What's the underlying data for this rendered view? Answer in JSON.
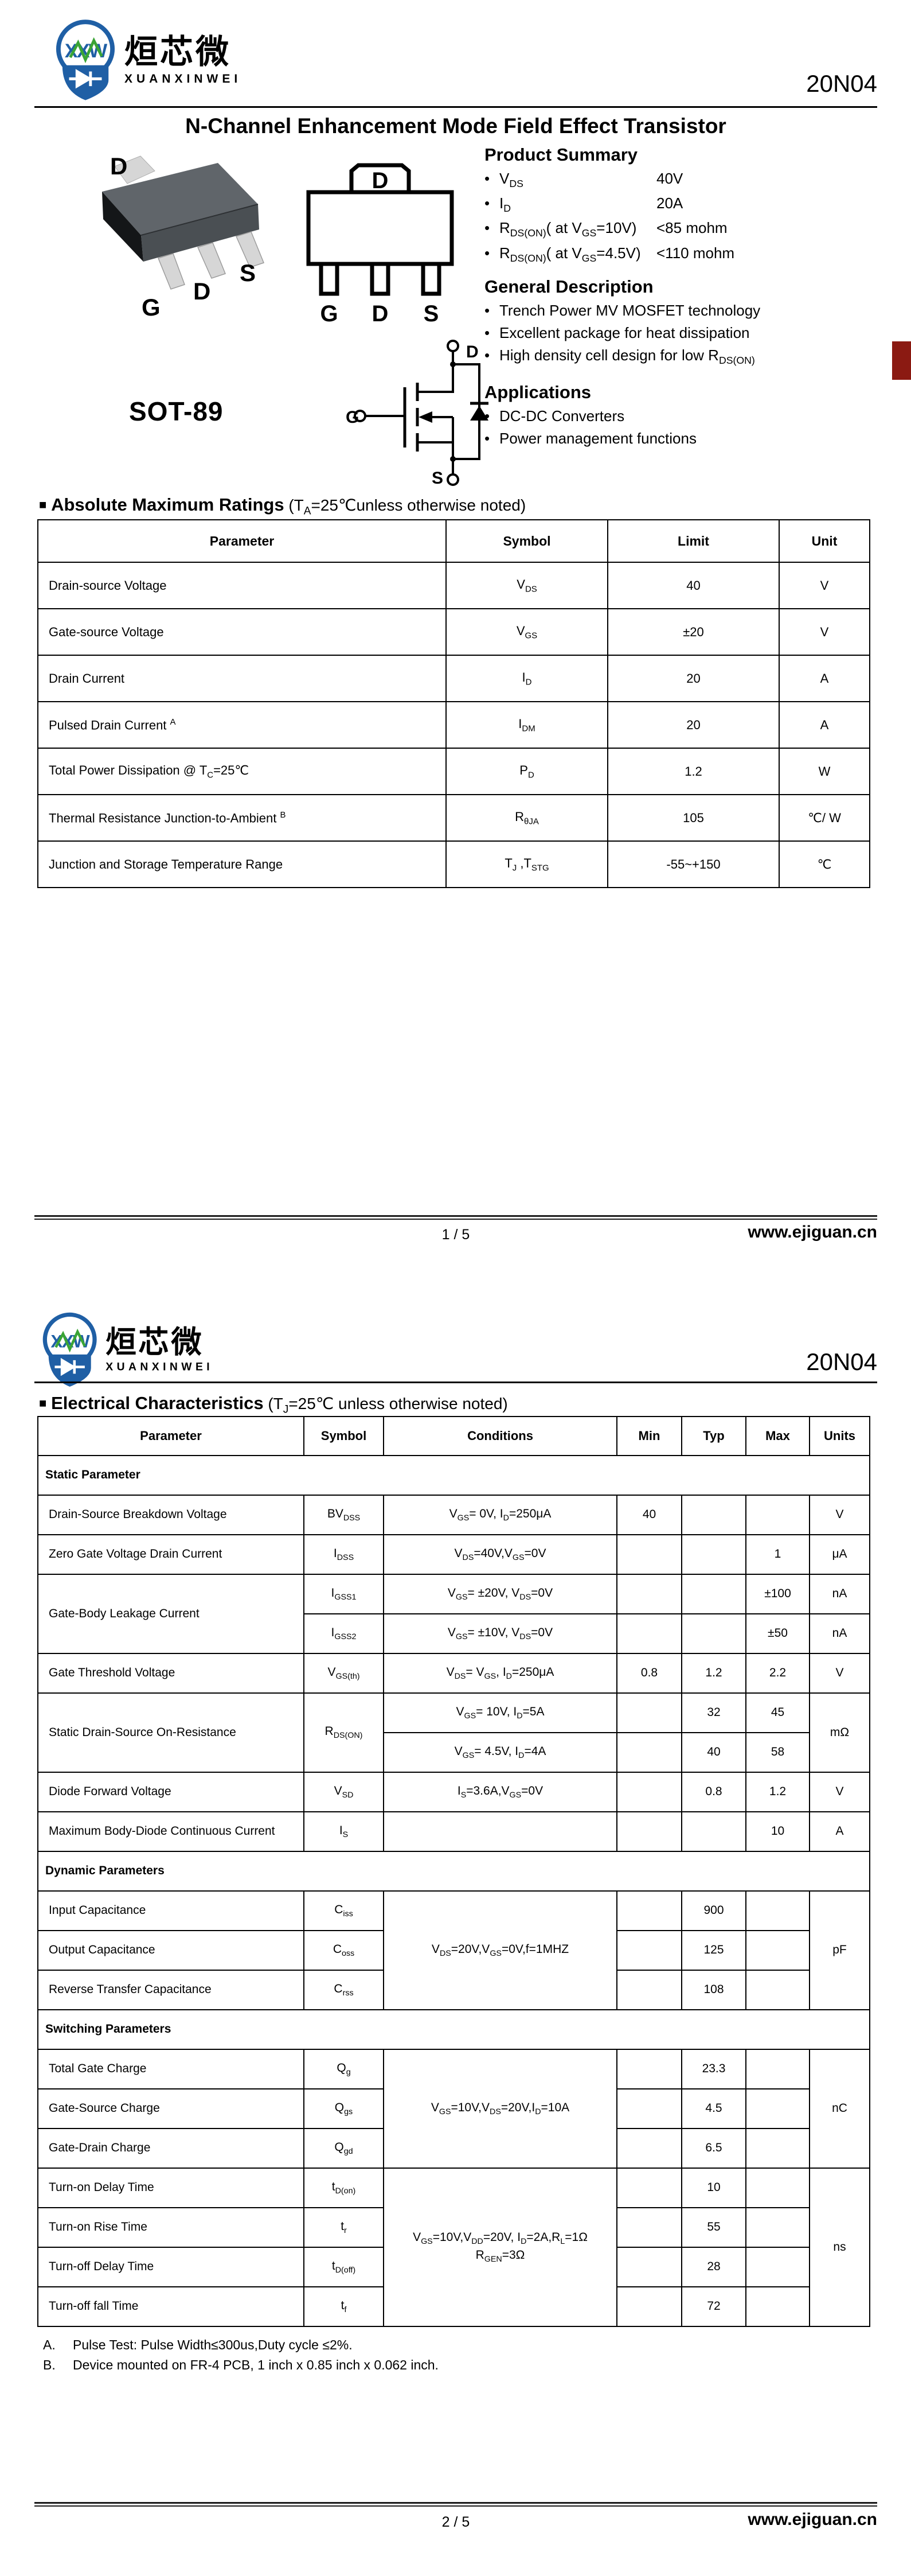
{
  "colors": {
    "logo_blue": "#1f5fa5",
    "logo_green": "#3aa435",
    "corner_tab_red": "#8b1a12"
  },
  "brand": {
    "name_cn": "烜芯微",
    "name_en": "XUANXINWEI",
    "logo_letters": "XXW",
    "part": "20N04"
  },
  "page1": {
    "title": "N-Channel Enhancement Mode Field Effect Transistor",
    "package_label": "SOT-89",
    "pins_3d": {
      "top": "D",
      "g": "G",
      "d": "D",
      "s": "S"
    },
    "pins_outline": {
      "tab": "D",
      "g": "G",
      "d": "D",
      "s": "S"
    },
    "schematic_pins": {
      "g": "G",
      "d": "D",
      "s": "S"
    },
    "product_summary": {
      "heading": "Product Summary",
      "items": [
        {
          "label": "V~DS~",
          "value": "40V"
        },
        {
          "label": "I~D~",
          "value": "20A"
        },
        {
          "label": "R~DS(ON)~( at V~GS~=10V)",
          "value": "<85 mohm"
        },
        {
          "label": "R~DS(ON)~( at V~GS~=4.5V)",
          "value": "<110 mohm"
        }
      ]
    },
    "general_description": {
      "heading": "General Description",
      "items": [
        "Trench Power MV MOSFET technology",
        "Excellent package for heat dissipation",
        "High density cell design for low R~DS(ON)~"
      ]
    },
    "applications": {
      "heading": "Applications",
      "items": [
        "DC-DC Converters",
        "Power management functions"
      ]
    },
    "abs_max": {
      "heading_bold": "Absolute Maximum Ratings",
      "heading_note": "(T~A~=25℃unless otherwise noted)",
      "columns": [
        "Parameter",
        "Symbol",
        "Limit",
        "Unit"
      ],
      "rows": [
        {
          "cells": [
            {
              "t": "Drain-source Voltage",
              "cls": "param"
            },
            "V~DS~",
            "40",
            "V"
          ]
        },
        {
          "cells": [
            {
              "t": "Gate-source Voltage",
              "cls": "param"
            },
            "V~GS~",
            "±20",
            "V"
          ]
        },
        {
          "cells": [
            {
              "t": "Drain Current",
              "cls": "param"
            },
            "I~D~",
            "20",
            "A"
          ]
        },
        {
          "cells": [
            {
              "t": "Pulsed Drain Current ^A^",
              "cls": "param"
            },
            "I~DM~",
            "20",
            "A"
          ]
        },
        {
          "cells": [
            {
              "t": "Total Power Dissipation @ T~C~=25℃",
              "cls": "param"
            },
            "P~D~",
            "1.2",
            "W"
          ]
        },
        {
          "cells": [
            {
              "t": "Thermal Resistance Junction-to-Ambient ^B^",
              "cls": "param"
            },
            "R~θJA~",
            "105",
            "℃/ W"
          ]
        },
        {
          "cells": [
            {
              "t": "Junction and Storage Temperature Range",
              "cls": "param"
            },
            "T~J~ ,T~STG~",
            "-55~+150",
            "℃"
          ]
        }
      ]
    },
    "footer": {
      "page": "1 / 5",
      "site": "www.ejiguan.cn"
    }
  },
  "page2": {
    "heading_bold": "Electrical Characteristics",
    "heading_note": "(T~J~=25℃ unless otherwise noted)",
    "table": {
      "columns": [
        "Parameter",
        "Symbol",
        "Conditions",
        "Min",
        "Typ",
        "Max",
        "Units"
      ],
      "rows": [
        {
          "cells": [
            {
              "t": "Static Parameter",
              "colspan": 7,
              "cls": "section"
            }
          ]
        },
        {
          "cells": [
            {
              "t": "Drain-Source Breakdown Voltage",
              "cls": "param"
            },
            "BV~DSS~",
            "V~GS~= 0V, I~D~=250μA",
            "40",
            "",
            "",
            "V"
          ]
        },
        {
          "cells": [
            {
              "t": "Zero Gate Voltage Drain Current",
              "cls": "param"
            },
            "I~DSS~",
            "V~DS~=40V,V~GS~=0V",
            "",
            "",
            "1",
            "μA"
          ]
        },
        {
          "cells": [
            {
              "t": "Gate-Body Leakage Current",
              "cls": "param",
              "rowspan": 2
            },
            "I~GSS1~",
            "V~GS~= ±20V, V~DS~=0V",
            "",
            "",
            "±100",
            "nA"
          ]
        },
        {
          "cells": [
            "I~GSS2~",
            "V~GS~= ±10V, V~DS~=0V",
            "",
            "",
            "±50",
            "nA"
          ]
        },
        {
          "cells": [
            {
              "t": "Gate Threshold Voltage",
              "cls": "param"
            },
            "V~GS(th)~",
            "V~DS~= V~GS~, I~D~=250μA",
            "0.8",
            "1.2",
            "2.2",
            "V"
          ]
        },
        {
          "cells": [
            {
              "t": "Static Drain-Source On-Resistance",
              "cls": "param",
              "rowspan": 2
            },
            {
              "t": "R~DS(ON)~",
              "rowspan": 2
            },
            "V~GS~= 10V, I~D~=5A",
            "",
            "32",
            "45",
            {
              "t": "mΩ",
              "rowspan": 2
            }
          ]
        },
        {
          "cells": [
            "V~GS~= 4.5V, I~D~=4A",
            "",
            "40",
            "58"
          ]
        },
        {
          "cells": [
            {
              "t": "Diode Forward Voltage",
              "cls": "param"
            },
            "V~SD~",
            "I~S~=3.6A,V~GS~=0V",
            "",
            "0.8",
            "1.2",
            "V"
          ]
        },
        {
          "cells": [
            {
              "t": "Maximum Body-Diode Continuous Current",
              "cls": "param"
            },
            "I~S~",
            "",
            "",
            "",
            "10",
            "A"
          ]
        },
        {
          "cells": [
            {
              "t": "Dynamic Parameters",
              "colspan": 7,
              "cls": "section"
            }
          ]
        },
        {
          "cells": [
            {
              "t": "Input Capacitance",
              "cls": "param"
            },
            "C~iss~",
            {
              "t": "V~DS~=20V,V~GS~=0V,f=1MHZ",
              "rowspan": 3
            },
            "",
            "900",
            "",
            {
              "t": "pF",
              "rowspan": 3
            }
          ]
        },
        {
          "cells": [
            {
              "t": "Output Capacitance",
              "cls": "param"
            },
            "C~oss~",
            "",
            "125",
            ""
          ]
        },
        {
          "cells": [
            {
              "t": "Reverse Transfer Capacitance",
              "cls": "param"
            },
            "C~rss~",
            "",
            "108",
            ""
          ]
        },
        {
          "cells": [
            {
              "t": "Switching Parameters",
              "colspan": 7,
              "cls": "section"
            }
          ]
        },
        {
          "cells": [
            {
              "t": "Total Gate Charge",
              "cls": "param"
            },
            "Q~g~",
            {
              "t": "V~GS~=10V,V~DS~=20V,I~D~=10A",
              "rowspan": 3
            },
            "",
            "23.3",
            "",
            {
              "t": "nC",
              "rowspan": 3
            }
          ]
        },
        {
          "cells": [
            {
              "t": "Gate-Source Charge",
              "cls": "param"
            },
            "Q~gs~",
            "",
            "4.5",
            ""
          ]
        },
        {
          "cells": [
            {
              "t": "Gate-Drain Charge",
              "cls": "param"
            },
            "Q~gd~",
            "",
            "6.5",
            ""
          ]
        },
        {
          "cells": [
            {
              "t": "Turn-on Delay Time",
              "cls": "param"
            },
            "t~D(on)~",
            {
              "t": "V~GS~=10V,V~DD~=20V, I~D~=2A,R~L~=1Ω\nR~GEN~=3Ω",
              "rowspan": 4
            },
            "",
            "10",
            "",
            {
              "t": "ns",
              "rowspan": 4
            }
          ]
        },
        {
          "cells": [
            {
              "t": "Turn-on Rise Time",
              "cls": "param"
            },
            "t~r~",
            "",
            "55",
            ""
          ]
        },
        {
          "cells": [
            {
              "t": "Turn-off Delay Time",
              "cls": "param"
            },
            "t~D(off)~",
            "",
            "28",
            ""
          ]
        },
        {
          "cells": [
            {
              "t": "Turn-off fall Time",
              "cls": "param"
            },
            "t~f~",
            "",
            "72",
            ""
          ]
        }
      ]
    },
    "notes": [
      {
        "id": "A.",
        "text": "Pulse Test: Pulse Width≤300us,Duty cycle ≤2%."
      },
      {
        "id": "B.",
        "text": "Device mounted on FR-4 PCB, 1 inch x 0.85 inch x 0.062 inch."
      }
    ],
    "footer": {
      "page": "2 / 5",
      "site": "www.ejiguan.cn"
    }
  }
}
